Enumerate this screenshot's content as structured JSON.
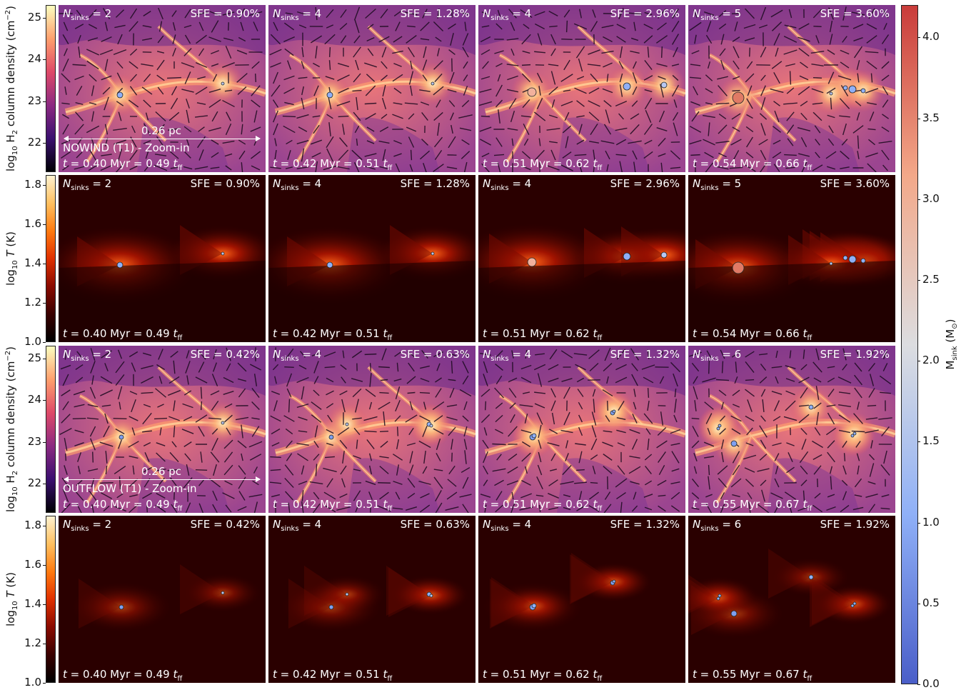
{
  "rows": [
    {
      "kind": "density",
      "panels": [
        {
          "nsinks": "2",
          "sfe": "SFE = 0.90%",
          "time": "0.40 Myr = 0.49",
          "scale": "0.26 pc",
          "model": "NOWIND (T1) - Zoom-in"
        },
        {
          "nsinks": "4",
          "sfe": "SFE = 1.28%",
          "time": "0.42 Myr = 0.51"
        },
        {
          "nsinks": "4",
          "sfe": "SFE = 2.96%",
          "time": "0.51 Myr = 0.62"
        },
        {
          "nsinks": "5",
          "sfe": "SFE = 3.60%",
          "time": "0.54 Myr = 0.66"
        }
      ]
    },
    {
      "kind": "temperature",
      "panels": [
        {
          "nsinks": "2",
          "sfe": "SFE = 0.90%",
          "time": "0.40 Myr = 0.49"
        },
        {
          "nsinks": "4",
          "sfe": "SFE = 1.28%",
          "time": "0.42 Myr = 0.51"
        },
        {
          "nsinks": "4",
          "sfe": "SFE = 2.96%",
          "time": "0.51 Myr = 0.62"
        },
        {
          "nsinks": "5",
          "sfe": "SFE = 3.60%",
          "time": "0.54 Myr = 0.66"
        }
      ]
    },
    {
      "kind": "density",
      "panels": [
        {
          "nsinks": "2",
          "sfe": "SFE = 0.42%",
          "time": "0.40 Myr = 0.49",
          "scale": "0.26 pc",
          "model": "OUTFLOW (T1) - Zoom-in"
        },
        {
          "nsinks": "4",
          "sfe": "SFE = 0.63%",
          "time": "0.42 Myr = 0.51"
        },
        {
          "nsinks": "4",
          "sfe": "SFE = 1.32%",
          "time": "0.51 Myr = 0.62"
        },
        {
          "nsinks": "6",
          "sfe": "SFE = 1.92%",
          "time": "0.55 Myr = 0.67"
        }
      ]
    },
    {
      "kind": "temperature",
      "panels": [
        {
          "nsinks": "2",
          "sfe": "SFE = 0.42%",
          "time": "0.40 Myr = 0.49"
        },
        {
          "nsinks": "4",
          "sfe": "SFE = 0.63%",
          "time": "0.42 Myr = 0.51"
        },
        {
          "nsinks": "4",
          "sfe": "SFE = 1.32%",
          "time": "0.51 Myr = 0.62"
        },
        {
          "nsinks": "6",
          "sfe": "SFE = 1.92%",
          "time": "0.55 Myr = 0.67"
        }
      ]
    }
  ],
  "labels": {
    "n_prefix": "N",
    "n_sub": "sinks",
    "n_eq": " = ",
    "t_prefix": "t",
    "t_eq": " = ",
    "tff_t": "t",
    "tff_sub": "ff"
  },
  "colorbars": {
    "density": {
      "label_pre": "log",
      "label_sub": "10",
      "label_mid": " H",
      "label_sub2": "2",
      "label_post": " column density (cm",
      "label_sup": "−2",
      "label_end": ")",
      "ticks": [
        "25",
        "24",
        "23",
        "22"
      ],
      "range": [
        21.3,
        25.3
      ],
      "colors": [
        "#000004",
        "#3b0f70",
        "#8c2981",
        "#de4968",
        "#fe9f6d",
        "#fcfdbf"
      ]
    },
    "temperature": {
      "label_pre": "log",
      "label_sub": "10",
      "label_var": " T",
      "label_post": " (K)",
      "ticks": [
        "1.8",
        "1.6",
        "1.4",
        "1.2",
        "1.0"
      ],
      "range": [
        1.0,
        1.85
      ],
      "colors": [
        "#000000",
        "#3a0000",
        "#8a0a00",
        "#e03000",
        "#ff7a10",
        "#ffc060",
        "#fff2d0"
      ]
    },
    "sink_mass": {
      "label": "M",
      "label_sub": "sink",
      "label_post": " (M",
      "label_sup": "⊙",
      "label_end": ")",
      "ticks": [
        "4.0",
        "3.5",
        "3.0",
        "2.5",
        "2.0",
        "1.5",
        "1.0",
        "0.5",
        "0.0"
      ],
      "range": [
        0.0,
        4.2
      ],
      "colors": [
        "#4a5ec8",
        "#8fb0f7",
        "#dcdde0",
        "#f3a889",
        "#c93c3a"
      ]
    }
  }
}
